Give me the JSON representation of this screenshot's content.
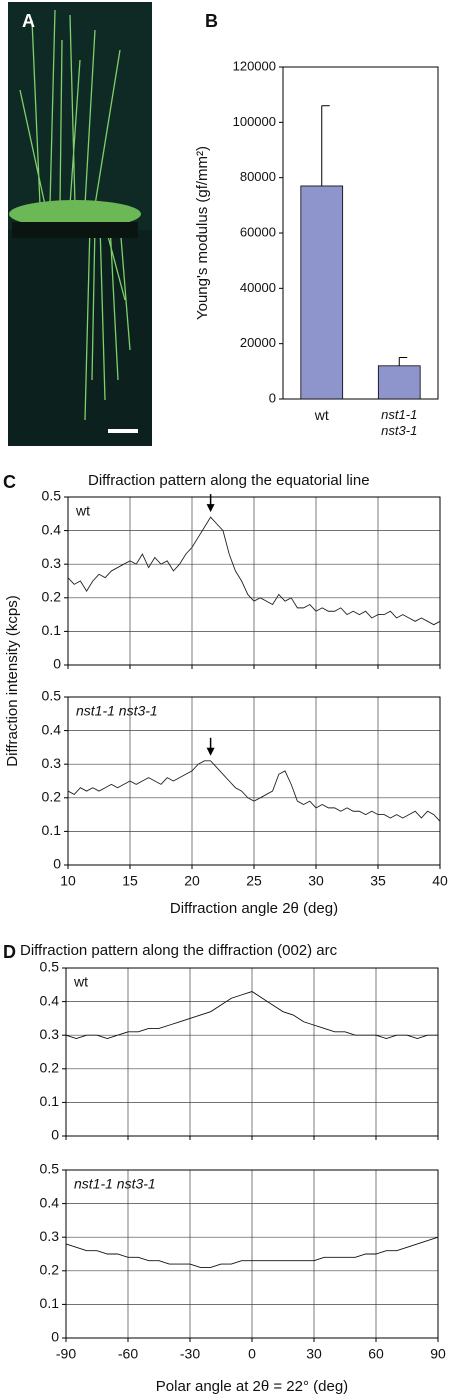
{
  "photo": {
    "panel_label": "A"
  },
  "chart_data": [
    {
      "type": "bar",
      "panel_label": "B",
      "ylabel": "Young's modulus (gf/mm²)",
      "categories": [
        "wt",
        "nst1-1 nst3-1"
      ],
      "values": [
        77000,
        12000
      ],
      "errors": [
        29000,
        3000
      ],
      "color": "#8e95cc",
      "ylim": [
        0,
        120000
      ],
      "yticks": [
        0,
        20000,
        40000,
        60000,
        80000,
        100000,
        120000
      ]
    },
    {
      "type": "line",
      "panel_label": "C",
      "title": "Diffraction pattern along the equatorial line",
      "xlabel": "Diffraction angle 2θ (deg)",
      "ylabel": "Diffraction intensity (kcps)",
      "grid": true,
      "x": [
        10,
        10.5,
        11,
        11.5,
        12,
        12.5,
        13,
        13.5,
        14,
        14.5,
        15,
        15.5,
        16,
        16.5,
        17,
        17.5,
        18,
        18.5,
        19,
        19.5,
        20,
        20.5,
        21,
        21.5,
        22,
        22.5,
        23,
        23.5,
        24,
        24.5,
        25,
        25.5,
        26,
        26.5,
        27,
        27.5,
        28,
        28.5,
        29,
        29.5,
        30,
        30.5,
        31,
        31.5,
        32,
        32.5,
        33,
        33.5,
        34,
        34.5,
        35,
        35.5,
        36,
        36.5,
        37,
        37.5,
        38,
        38.5,
        39,
        39.5,
        40
      ],
      "xlim": [
        10,
        40
      ],
      "xticks": [
        10,
        15,
        20,
        25,
        30,
        35,
        40
      ],
      "panels": [
        {
          "annotation": "wt",
          "ylim": [
            0,
            0.5
          ],
          "yticks": [
            0,
            0.1,
            0.2,
            0.3,
            0.4,
            0.5
          ],
          "arrow": {
            "x": 21.5,
            "y": 0.455
          },
          "series": [
            {
              "color": "#222222",
              "values": [
                0.26,
                0.24,
                0.25,
                0.22,
                0.25,
                0.27,
                0.26,
                0.28,
                0.29,
                0.3,
                0.31,
                0.3,
                0.33,
                0.29,
                0.32,
                0.3,
                0.31,
                0.28,
                0.3,
                0.33,
                0.35,
                0.38,
                0.41,
                0.44,
                0.42,
                0.4,
                0.33,
                0.28,
                0.25,
                0.21,
                0.19,
                0.2,
                0.19,
                0.18,
                0.21,
                0.19,
                0.2,
                0.17,
                0.17,
                0.18,
                0.16,
                0.17,
                0.16,
                0.16,
                0.17,
                0.15,
                0.16,
                0.15,
                0.16,
                0.14,
                0.15,
                0.15,
                0.16,
                0.14,
                0.15,
                0.14,
                0.13,
                0.14,
                0.13,
                0.12,
                0.13
              ]
            }
          ]
        },
        {
          "annotation": "nst1-1 nst3-1",
          "ylim": [
            0,
            0.5
          ],
          "yticks": [
            0,
            0.1,
            0.2,
            0.3,
            0.4,
            0.5
          ],
          "arrow": {
            "x": 21.5,
            "y": 0.325
          },
          "series": [
            {
              "color": "#222222",
              "values": [
                0.22,
                0.21,
                0.23,
                0.22,
                0.23,
                0.22,
                0.23,
                0.24,
                0.23,
                0.24,
                0.25,
                0.24,
                0.25,
                0.26,
                0.25,
                0.24,
                0.26,
                0.25,
                0.26,
                0.27,
                0.28,
                0.3,
                0.31,
                0.31,
                0.29,
                0.27,
                0.25,
                0.23,
                0.22,
                0.2,
                0.19,
                0.2,
                0.21,
                0.22,
                0.27,
                0.28,
                0.24,
                0.19,
                0.18,
                0.19,
                0.17,
                0.18,
                0.17,
                0.17,
                0.16,
                0.17,
                0.16,
                0.16,
                0.15,
                0.16,
                0.15,
                0.15,
                0.14,
                0.15,
                0.14,
                0.15,
                0.16,
                0.14,
                0.16,
                0.15,
                0.13
              ]
            }
          ]
        }
      ]
    },
    {
      "type": "line",
      "panel_label": "D",
      "title": "Diffraction pattern along the diffraction (002) arc",
      "xlabel": "Polar angle at 2θ = 22°  (deg)",
      "grid": true,
      "x": [
        -90,
        -85,
        -80,
        -75,
        -70,
        -65,
        -60,
        -55,
        -50,
        -45,
        -40,
        -35,
        -30,
        -25,
        -20,
        -15,
        -10,
        -5,
        0,
        5,
        10,
        15,
        20,
        25,
        30,
        35,
        40,
        45,
        50,
        55,
        60,
        65,
        70,
        75,
        80,
        85,
        90
      ],
      "xlim": [
        -90,
        90
      ],
      "xticks": [
        -90,
        -60,
        -30,
        0,
        30,
        60,
        90
      ],
      "panels": [
        {
          "annotation": "wt",
          "ylim": [
            0,
            0.5
          ],
          "yticks": [
            0,
            0.1,
            0.2,
            0.3,
            0.4,
            0.5
          ],
          "series": [
            {
              "color": "#111111",
              "values": [
                0.3,
                0.29,
                0.3,
                0.3,
                0.29,
                0.3,
                0.31,
                0.31,
                0.32,
                0.32,
                0.33,
                0.34,
                0.35,
                0.36,
                0.37,
                0.39,
                0.41,
                0.42,
                0.43,
                0.41,
                0.39,
                0.37,
                0.36,
                0.34,
                0.33,
                0.32,
                0.31,
                0.31,
                0.3,
                0.3,
                0.3,
                0.29,
                0.3,
                0.3,
                0.29,
                0.3,
                0.3
              ]
            }
          ]
        },
        {
          "annotation": "nst1-1 nst3-1",
          "ylim": [
            0,
            0.5
          ],
          "yticks": [
            0,
            0.1,
            0.2,
            0.3,
            0.4,
            0.5
          ],
          "series": [
            {
              "color": "#111111",
              "values": [
                0.28,
                0.27,
                0.26,
                0.26,
                0.25,
                0.25,
                0.24,
                0.24,
                0.23,
                0.23,
                0.22,
                0.22,
                0.22,
                0.21,
                0.21,
                0.22,
                0.22,
                0.23,
                0.23,
                0.23,
                0.23,
                0.23,
                0.23,
                0.23,
                0.23,
                0.24,
                0.24,
                0.24,
                0.24,
                0.25,
                0.25,
                0.26,
                0.26,
                0.27,
                0.28,
                0.29,
                0.3
              ]
            }
          ]
        }
      ]
    }
  ]
}
